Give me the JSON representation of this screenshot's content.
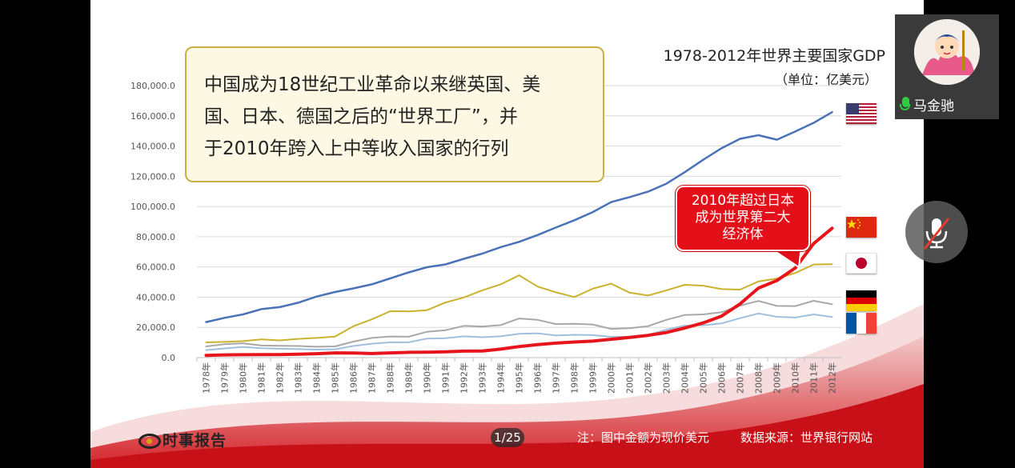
{
  "slide": {
    "callout_text": [
      "中国成为18世纪工业革命以来继英国、美",
      "国、日本、德国之后的“世界工厂”，并",
      "于2010年跨入上中等收入国家的行列"
    ],
    "bubble_text": [
      "2010年超过日本",
      "成为世界第二大",
      "经济体"
    ],
    "footer": {
      "logo_text": "时事报告",
      "logo_url_text": "www.shishibaogao.com",
      "page_indicator": "1/25",
      "note": "注：图中金额为现价美元",
      "source": "数据来源：世界银行网站"
    }
  },
  "meeting": {
    "participant_name": "马金驰",
    "mute_icon": "mic-off-icon"
  },
  "chart_data": {
    "type": "line",
    "title": "1978-2012年世界主要国家GDP",
    "subtitle": "（单位：亿美元）",
    "x": [
      "1978年",
      "1979年",
      "1980年",
      "1981年",
      "1982年",
      "1983年",
      "1984年",
      "1985年",
      "1986年",
      "1987年",
      "1988年",
      "1989年",
      "1990年",
      "1991年",
      "1992年",
      "1993年",
      "1994年",
      "1995年",
      "1996年",
      "1997年",
      "1998年",
      "1999年",
      "2000年",
      "2001年",
      "2002年",
      "2003年",
      "2004年",
      "2005年",
      "2006年",
      "2007年",
      "2008年",
      "2009年",
      "2010年",
      "2011年",
      "2012年"
    ],
    "y_ticks": [
      "0.0",
      "20,000.0",
      "40,000.0",
      "60,000.0",
      "80,000.0",
      "100,000.0",
      "120,000.0",
      "140,000.0",
      "160,000.0",
      "180,000.0"
    ],
    "ylim": [
      0,
      180000
    ],
    "grid": true,
    "legend": "flags-right",
    "series": [
      {
        "flag": "us",
        "color": "#4a72b8",
        "width": 2.5,
        "values": [
          23500,
          26300,
          28600,
          32100,
          33400,
          36300,
          40400,
          43400,
          45800,
          48500,
          52400,
          56400,
          59800,
          61700,
          65400,
          68800,
          73100,
          76600,
          81100,
          86100,
          90900,
          96300,
          102900,
          106200,
          109800,
          115100,
          122700,
          130900,
          138600,
          144800,
          147200,
          144200,
          149600,
          155400,
          162400
        ]
      },
      {
        "flag": "cn",
        "color": "#e8141c",
        "width": 4,
        "values": [
          1500,
          1800,
          1900,
          2000,
          2000,
          2300,
          2600,
          3100,
          3000,
          2700,
          3100,
          3500,
          3600,
          3800,
          4300,
          4400,
          5600,
          7300,
          8600,
          9600,
          10300,
          10900,
          12100,
          13400,
          14700,
          16600,
          19600,
          23000,
          27500,
          35500,
          46000,
          51000,
          59300,
          75500,
          85600
        ]
      },
      {
        "flag": "jp",
        "color": "#c9b22c",
        "width": 2,
        "values": [
          10100,
          10400,
          10900,
          12000,
          11400,
          12400,
          13000,
          13900,
          20800,
          25300,
          30700,
          30600,
          31400,
          36500,
          39800,
          44500,
          48500,
          54500,
          47000,
          43200,
          40100,
          45600,
          48900,
          43000,
          41100,
          44500,
          48200,
          47600,
          45300,
          45000,
          50400,
          52300,
          56000,
          61600,
          61800
        ]
      },
      {
        "flag": "de",
        "color": "#a8a8a8",
        "width": 2,
        "values": [
          7400,
          8900,
          9500,
          8000,
          7800,
          7700,
          7200,
          7400,
          10600,
          13000,
          14000,
          13800,
          17100,
          18100,
          21000,
          20600,
          21500,
          25900,
          25000,
          22200,
          22400,
          21900,
          19000,
          19500,
          20800,
          25000,
          28200,
          28600,
          30000,
          34400,
          37500,
          34200,
          34100,
          37600,
          35300
        ]
      },
      {
        "flag": "fr",
        "color": "#9fbfde",
        "width": 2,
        "values": [
          5000,
          6100,
          7000,
          6200,
          5900,
          5600,
          5300,
          5500,
          7700,
          9200,
          10100,
          10100,
          12600,
          12800,
          14100,
          13500,
          14100,
          15800,
          16100,
          14600,
          15100,
          14900,
          13700,
          13800,
          15000,
          18500,
          21200,
          21400,
          22600,
          26100,
          29200,
          27000,
          26500,
          28600,
          26900
        ]
      }
    ]
  }
}
